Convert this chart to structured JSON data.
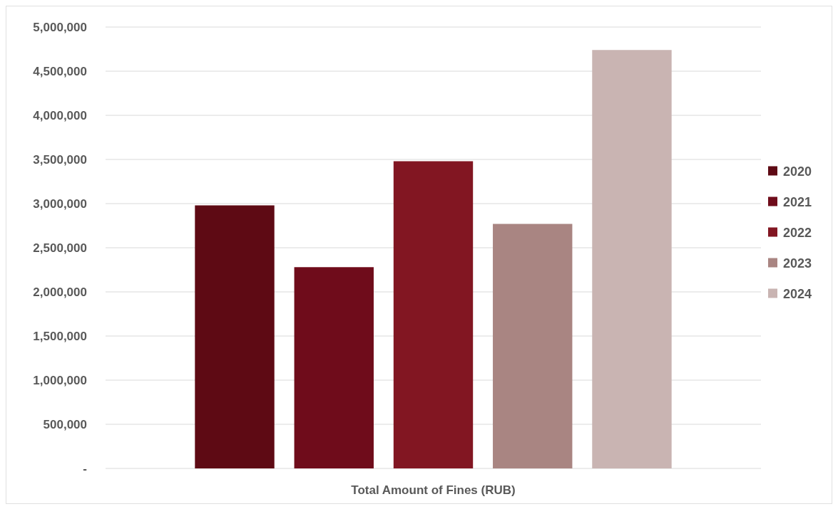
{
  "chart_data": {
    "type": "bar",
    "categories": [
      "Total Amount of Fines (RUB)"
    ],
    "series": [
      {
        "name": "2020",
        "color": "#5e0a14",
        "values": [
          2980000
        ]
      },
      {
        "name": "2021",
        "color": "#6f0c1b",
        "values": [
          2280000
        ]
      },
      {
        "name": "2022",
        "color": "#821622",
        "values": [
          3480000
        ]
      },
      {
        "name": "2023",
        "color": "#a98582",
        "values": [
          2770000
        ]
      },
      {
        "name": "2024",
        "color": "#c9b4b2",
        "values": [
          4740000
        ]
      }
    ],
    "ylim": [
      0,
      5000000
    ],
    "yticks": [
      {
        "value": 0,
        "label": "-"
      },
      {
        "value": 500000,
        "label": "500,000"
      },
      {
        "value": 1000000,
        "label": "1,000,000"
      },
      {
        "value": 1500000,
        "label": "1,500,000"
      },
      {
        "value": 2000000,
        "label": "2,000,000"
      },
      {
        "value": 2500000,
        "label": "2,500,000"
      },
      {
        "value": 3000000,
        "label": "3,000,000"
      },
      {
        "value": 3500000,
        "label": "3,500,000"
      },
      {
        "value": 4000000,
        "label": "4,000,000"
      },
      {
        "value": 4500000,
        "label": "4,500,000"
      },
      {
        "value": 5000000,
        "label": "5,000,000"
      }
    ],
    "grid": "y",
    "legend": "right"
  }
}
